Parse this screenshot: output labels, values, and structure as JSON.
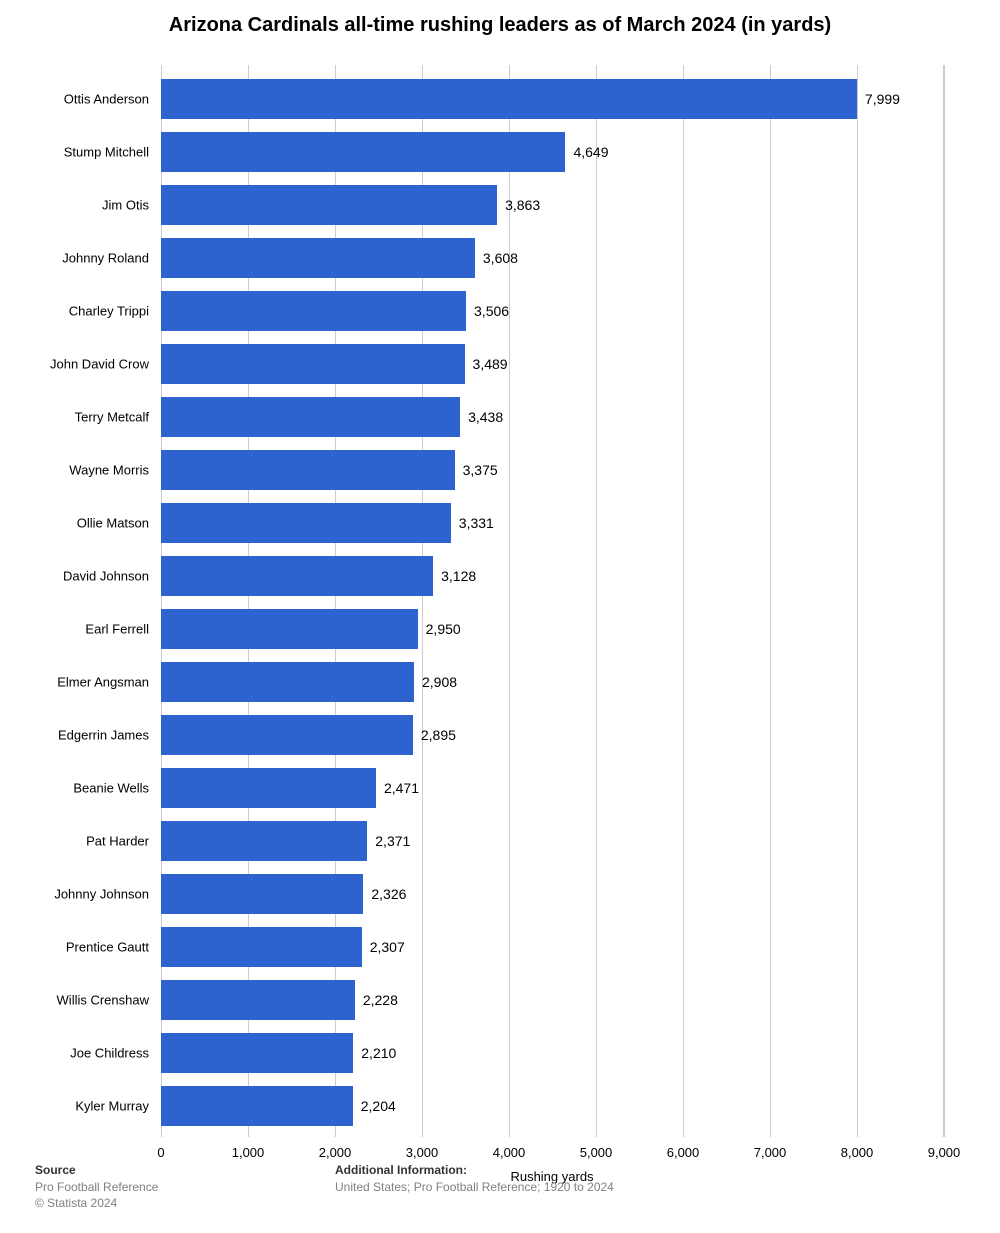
{
  "title": "Arizona Cardinals all-time rushing leaders as of March 2024 (in yards)",
  "chart": {
    "type": "bar-horizontal",
    "x_min": 0,
    "x_max": 9000,
    "x_tick_step": 1000,
    "x_ticks": [
      "0",
      "1,000",
      "2,000",
      "3,000",
      "4,000",
      "5,000",
      "6,000",
      "7,000",
      "8,000",
      "9,000"
    ],
    "x_axis_title": "Rushing yards",
    "bar_color": "#2e62cf",
    "grid_color": "#cccccc",
    "background_color": "#ffffff",
    "label_fontsize": 14,
    "tick_fontsize": 13,
    "title_fontsize": 20,
    "categories": [
      "Ottis Anderson",
      "Stump Mitchell",
      "Jim Otis",
      "Johnny Roland",
      "Charley Trippi",
      "John David Crow",
      "Terry Metcalf",
      "Wayne Morris",
      "Ollie Matson",
      "David Johnson",
      "Earl Ferrell",
      "Elmer Angsman",
      "Edgerrin James",
      "Beanie Wells",
      "Pat Harder",
      "Johnny Johnson",
      "Prentice Gautt",
      "Willis Crenshaw",
      "Joe Childress",
      "Kyler Murray"
    ],
    "values": [
      7999,
      4649,
      3863,
      3608,
      3506,
      3489,
      3438,
      3375,
      3331,
      3128,
      2950,
      2908,
      2895,
      2471,
      2371,
      2326,
      2307,
      2228,
      2210,
      2204
    ],
    "value_labels": [
      "7,999",
      "4,649",
      "3,863",
      "3,608",
      "3,506",
      "3,489",
      "3,438",
      "3,375",
      "3,331",
      "3,128",
      "2,950",
      "2,908",
      "2,895",
      "2,471",
      "2,371",
      "2,326",
      "2,307",
      "2,228",
      "2,210",
      "2,204"
    ]
  },
  "footer": {
    "source_head": "Source",
    "source_line1": "Pro Football Reference",
    "source_line2": "© Statista 2024",
    "addinfo_head": "Additional Information:",
    "addinfo_text": "United States; Pro Football Reference; 1920 to 2024"
  }
}
